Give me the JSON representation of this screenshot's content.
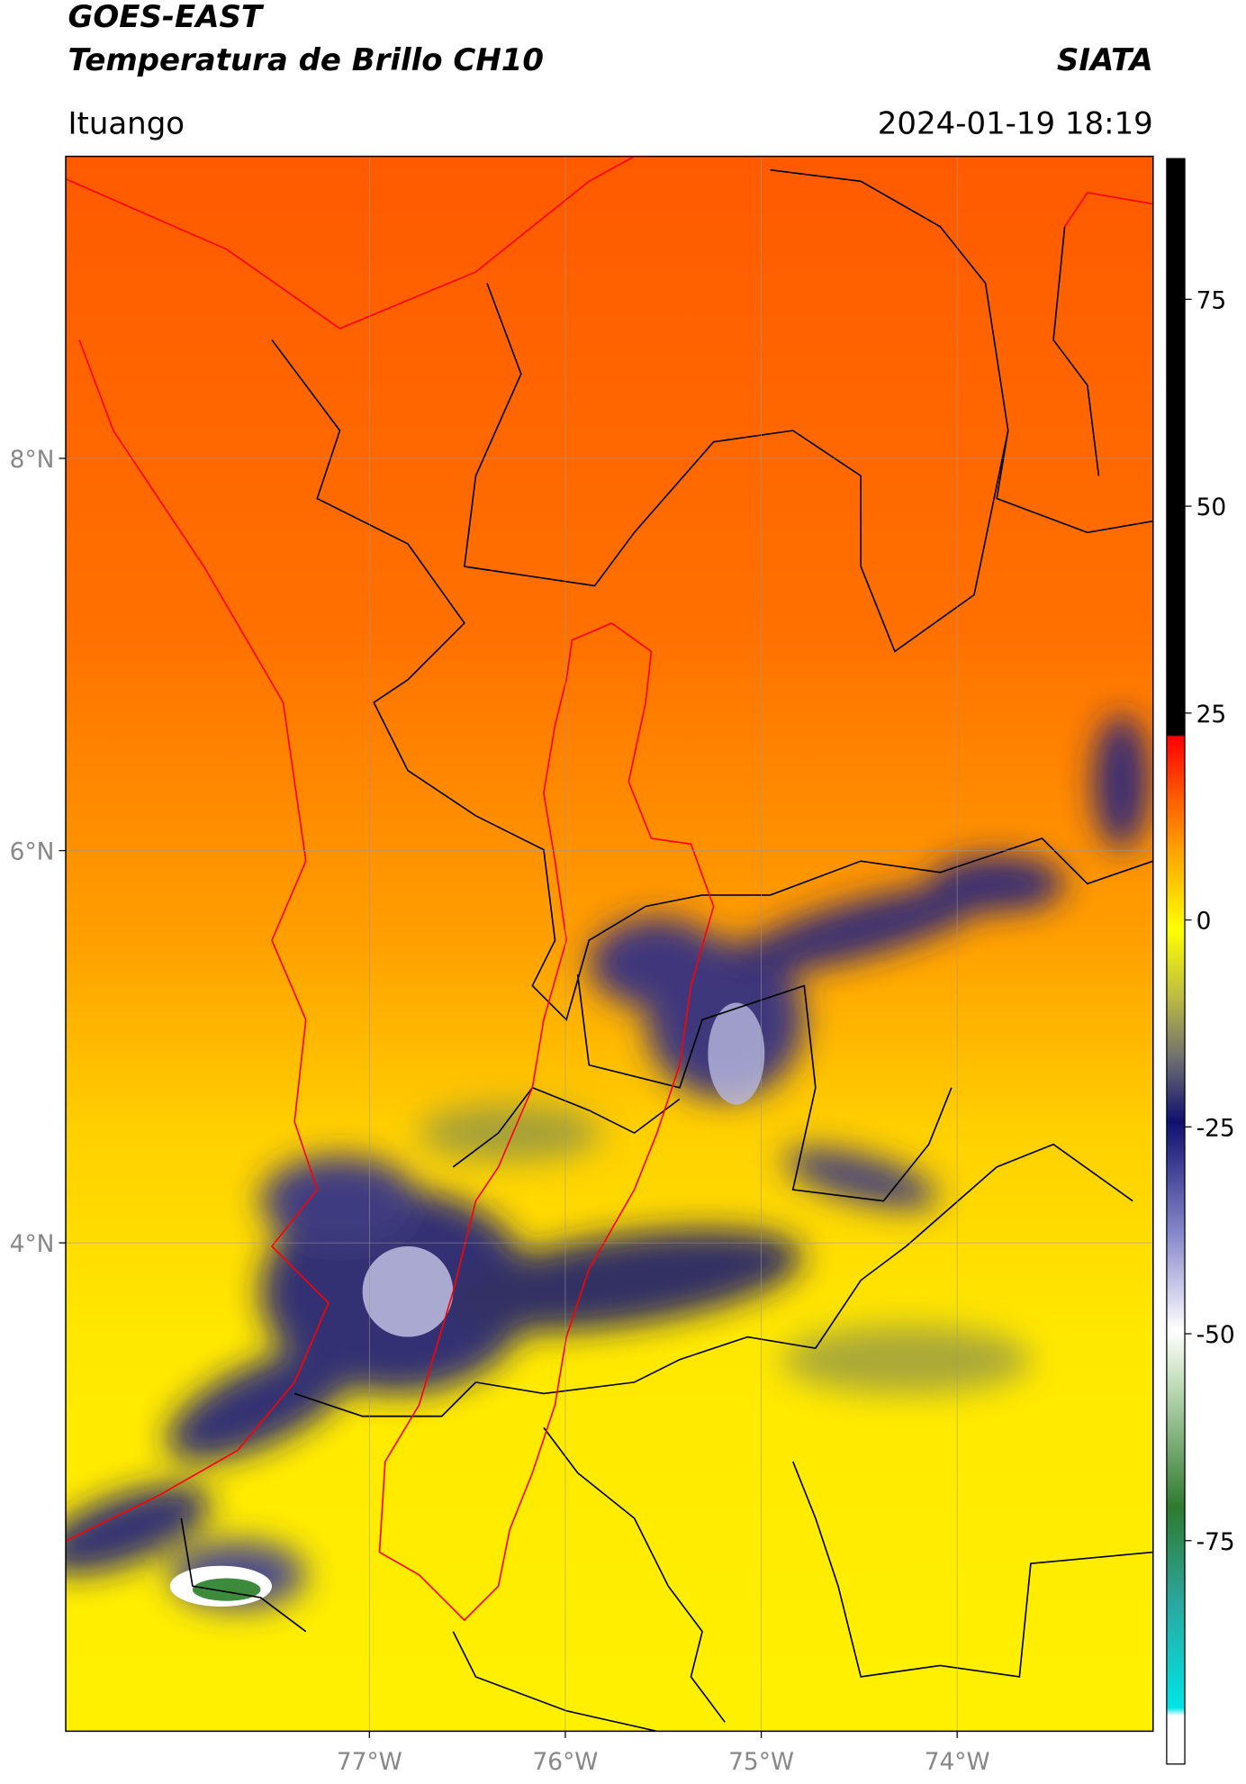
{
  "map": {
    "title": "GOES-EAST",
    "subtitle": "Temperatura de Brillo CH10",
    "source": "SIATA",
    "location": "Ituango",
    "datetime": "2024-01-19 18:19",
    "xlim": [
      -78.55,
      -73.0
    ],
    "ylim": [
      1.51,
      9.54
    ],
    "xticks": [
      {
        "value": -77,
        "label": "77°W"
      },
      {
        "value": -76,
        "label": "76°W"
      },
      {
        "value": -75,
        "label": "75°W"
      },
      {
        "value": -74,
        "label": "74°W"
      }
    ],
    "yticks": [
      {
        "value": 8,
        "label": "8°N"
      },
      {
        "value": 6,
        "label": "6°N"
      },
      {
        "value": 4,
        "label": "4°N"
      }
    ],
    "grid": true,
    "colorbar": {
      "lim": [
        -102,
        92
      ],
      "ticks": [
        75,
        50,
        25,
        0,
        -25,
        -50,
        -75
      ]
    }
  }
}
